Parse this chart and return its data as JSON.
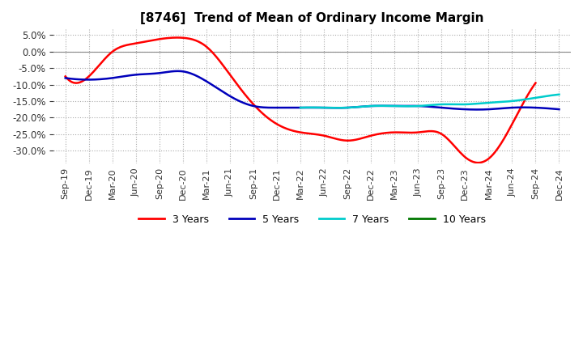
{
  "title": "[8746]  Trend of Mean of Ordinary Income Margin",
  "title_fontsize": 11,
  "background_color": "#ffffff",
  "plot_background": "#ffffff",
  "grid_color": "#aaaaaa",
  "ylim": [
    -34,
    7
  ],
  "yticks": [
    5.0,
    0.0,
    -5.0,
    -10.0,
    -15.0,
    -20.0,
    -25.0,
    -30.0
  ],
  "x_labels": [
    "Sep-19",
    "Dec-19",
    "Mar-20",
    "Jun-20",
    "Sep-20",
    "Dec-20",
    "Mar-21",
    "Jun-21",
    "Sep-21",
    "Dec-21",
    "Mar-22",
    "Jun-22",
    "Sep-22",
    "Dec-22",
    "Mar-23",
    "Jun-23",
    "Sep-23",
    "Dec-23",
    "Mar-24",
    "Jun-24",
    "Sep-24",
    "Dec-24"
  ],
  "series": {
    "3 Years": {
      "color": "#ff0000",
      "data": [
        -7.5,
        -7.5,
        0.0,
        2.5,
        3.8,
        4.2,
        1.5,
        -7.0,
        -16.0,
        -22.0,
        -24.5,
        -25.5,
        -27.0,
        -25.5,
        -24.5,
        -24.5,
        -25.0,
        -32.0,
        -32.5,
        -22.0,
        -9.5,
        null
      ]
    },
    "5 Years": {
      "color": "#0000bb",
      "data": [
        -8.0,
        -8.5,
        -8.0,
        -7.0,
        -6.5,
        -6.0,
        -9.0,
        -13.5,
        -16.5,
        -17.0,
        -17.0,
        -17.0,
        -17.0,
        -16.5,
        -16.5,
        -16.5,
        -17.0,
        -17.5,
        -17.5,
        -17.0,
        -17.0,
        -17.5
      ]
    },
    "7 Years": {
      "color": "#00cccc",
      "data": [
        null,
        null,
        null,
        null,
        null,
        null,
        null,
        null,
        null,
        null,
        -17.0,
        -17.0,
        -17.0,
        -16.5,
        -16.5,
        -16.5,
        -16.0,
        -16.0,
        -15.5,
        -15.0,
        -14.0,
        -13.0
      ]
    },
    "10 Years": {
      "color": "#007700",
      "data": [
        null,
        null,
        null,
        null,
        null,
        null,
        null,
        null,
        null,
        null,
        null,
        null,
        null,
        null,
        null,
        null,
        null,
        null,
        null,
        null,
        null,
        null
      ]
    }
  },
  "legend_ncol": 4
}
